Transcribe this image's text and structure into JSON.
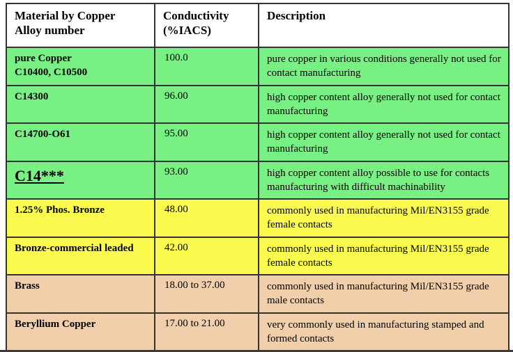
{
  "page": {
    "background_color": "#ffffff",
    "border_color": "#333333"
  },
  "table": {
    "columns": [
      {
        "label": "Material by Copper\nAlloy number"
      },
      {
        "label": "Conductivity\n(%IACS)"
      },
      {
        "label": "Description"
      }
    ],
    "row_colors": {
      "green": "#79f083",
      "yellow": "#fbfb4f",
      "tan": "#f1cfab"
    },
    "rows": [
      {
        "material": "pure Copper\nC10400, C10500",
        "conductivity": "100.0",
        "description": "pure copper in various conditions generally not used for contact manufacturing",
        "color": "green",
        "emphasized": false
      },
      {
        "material": "C14300",
        "conductivity": "96.00",
        "description": "high copper content alloy generally not used for contact manufacturing",
        "color": "green",
        "emphasized": false
      },
      {
        "material": "C14700-O61",
        "conductivity": "95.00",
        "description": "high copper content alloy generally not used for contact manufacturing",
        "color": "green",
        "emphasized": false
      },
      {
        "material": "C14***",
        "conductivity": "93.00",
        "description": "high copper content alloy possible to use for contacts manufacturing with difficult machinability",
        "color": "green",
        "emphasized": true
      },
      {
        "material": "1.25% Phos. Bronze",
        "conductivity": "48.00",
        "description": "commonly used in manufacturing Mil/EN3155 grade female contacts",
        "color": "yellow",
        "emphasized": false
      },
      {
        "material": "Bronze-commercial leaded",
        "conductivity": "42.00",
        "description": "commonly used in manufacturing Mil/EN3155 grade female contacts",
        "color": "yellow",
        "emphasized": false
      },
      {
        "material": "Brass",
        "conductivity": "18.00 to 37.00",
        "description": "commonly used in manufacturing Mil/EN3155 grade male contacts",
        "color": "tan",
        "emphasized": false
      },
      {
        "material": "Beryllium Copper",
        "conductivity": "17.00 to 21.00",
        "description": "very commonly used in manufacturing stamped and formed contacts",
        "color": "tan",
        "emphasized": false
      }
    ]
  }
}
